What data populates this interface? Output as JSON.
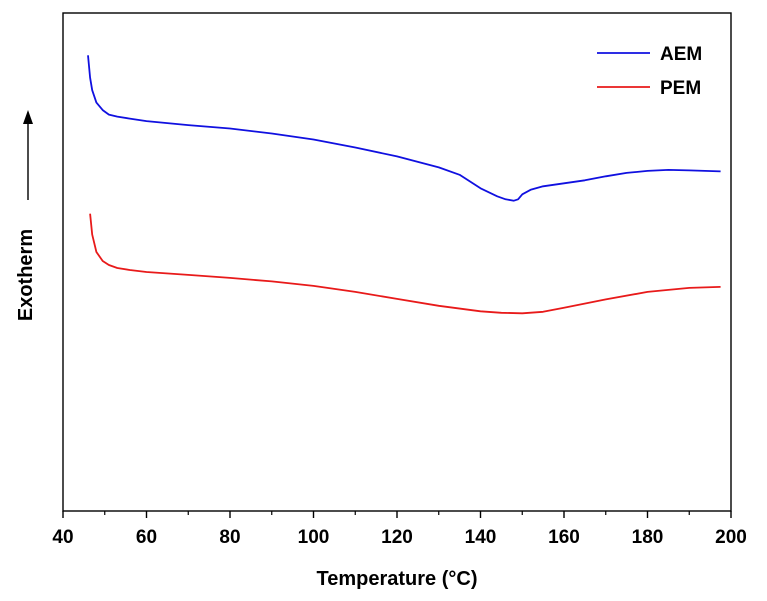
{
  "chart_data": {
    "type": "line",
    "xlabel": "Temperature (°C)",
    "ylabel": "Exotherm",
    "xlim": [
      40,
      200
    ],
    "ylim": [
      0,
      100
    ],
    "xticks": [
      40,
      60,
      80,
      100,
      120,
      140,
      160,
      180,
      200
    ],
    "y_tick_labels_shown": false,
    "grid": false,
    "legend_position": "top-right",
    "series": [
      {
        "name": "AEM",
        "color": "#1010e0",
        "points": [
          [
            46.0,
            91.5
          ],
          [
            46.5,
            87.0
          ],
          [
            47.0,
            84.5
          ],
          [
            48.0,
            82.0
          ],
          [
            49.5,
            80.5
          ],
          [
            51.0,
            79.6
          ],
          [
            53.0,
            79.2
          ],
          [
            56.0,
            78.8
          ],
          [
            60.0,
            78.3
          ],
          [
            70.0,
            77.5
          ],
          [
            80.0,
            76.8
          ],
          [
            90.0,
            75.8
          ],
          [
            100.0,
            74.6
          ],
          [
            110.0,
            73.0
          ],
          [
            120.0,
            71.2
          ],
          [
            130.0,
            69.0
          ],
          [
            135.0,
            67.5
          ],
          [
            140.0,
            64.8
          ],
          [
            144.0,
            63.2
          ],
          [
            146.0,
            62.6
          ],
          [
            148.0,
            62.3
          ],
          [
            149.0,
            62.6
          ],
          [
            150.0,
            63.6
          ],
          [
            152.0,
            64.5
          ],
          [
            155.0,
            65.2
          ],
          [
            160.0,
            65.8
          ],
          [
            165.0,
            66.4
          ],
          [
            170.0,
            67.2
          ],
          [
            175.0,
            67.9
          ],
          [
            180.0,
            68.3
          ],
          [
            185.0,
            68.5
          ],
          [
            190.0,
            68.4
          ],
          [
            197.5,
            68.2
          ]
        ]
      },
      {
        "name": "PEM",
        "color": "#e81a1a",
        "points": [
          [
            46.5,
            59.7
          ],
          [
            47.0,
            55.5
          ],
          [
            48.0,
            52.0
          ],
          [
            49.5,
            50.2
          ],
          [
            51.0,
            49.4
          ],
          [
            53.0,
            48.8
          ],
          [
            56.0,
            48.4
          ],
          [
            60.0,
            48.0
          ],
          [
            70.0,
            47.4
          ],
          [
            80.0,
            46.8
          ],
          [
            90.0,
            46.1
          ],
          [
            100.0,
            45.2
          ],
          [
            110.0,
            44.0
          ],
          [
            120.0,
            42.6
          ],
          [
            130.0,
            41.2
          ],
          [
            140.0,
            40.1
          ],
          [
            145.0,
            39.8
          ],
          [
            150.0,
            39.7
          ],
          [
            155.0,
            40.0
          ],
          [
            160.0,
            40.8
          ],
          [
            170.0,
            42.5
          ],
          [
            180.0,
            44.0
          ],
          [
            190.0,
            44.8
          ],
          [
            197.5,
            45.0
          ]
        ]
      }
    ]
  }
}
